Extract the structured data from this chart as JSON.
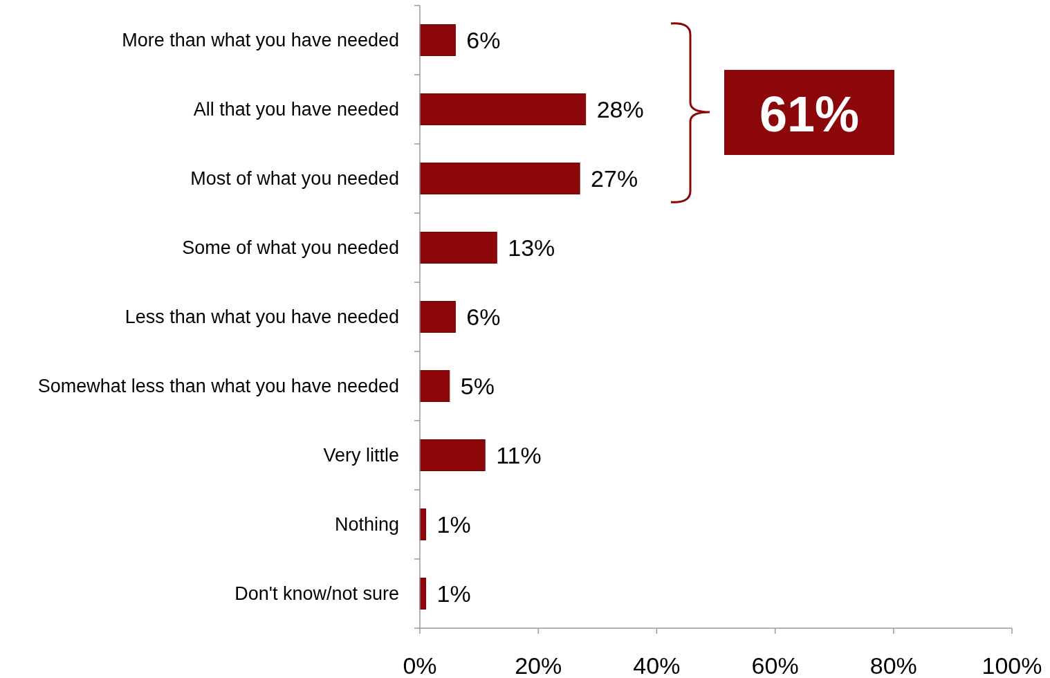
{
  "chart_data": {
    "type": "bar",
    "orientation": "horizontal",
    "categories": [
      "More than what you have needed",
      "All that you have needed",
      "Most of what you needed",
      "Some of what you needed",
      "Less than what you have needed",
      "Somewhat less than what you have needed",
      "Very little",
      "Nothing",
      "Don't know/not sure"
    ],
    "values": [
      6,
      28,
      27,
      13,
      6,
      5,
      11,
      1,
      1
    ],
    "value_labels": [
      "6%",
      "28%",
      "27%",
      "13%",
      "6%",
      "5%",
      "11%",
      "1%",
      "1%"
    ],
    "color": "#8b0709",
    "xlim": [
      0,
      100
    ],
    "xticks": [
      {
        "value": 0,
        "label": "0%"
      },
      {
        "value": 20,
        "label": "20%"
      },
      {
        "value": 40,
        "label": "40%"
      },
      {
        "value": 60,
        "label": "60%"
      },
      {
        "value": 80,
        "label": "80%"
      },
      {
        "value": 100,
        "label": "100%"
      }
    ],
    "grid": false,
    "annotations": [
      "61%"
    ]
  }
}
